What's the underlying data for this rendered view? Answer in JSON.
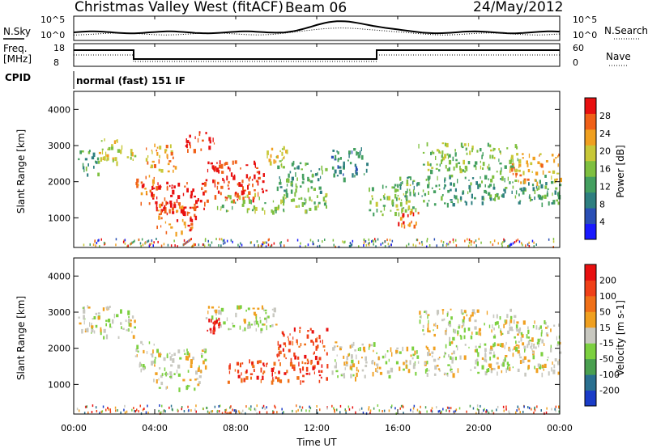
{
  "header": {
    "radar_title": "Christmas Valley West (fitACF)",
    "beam": "Beam 06",
    "date": "24/May/2012"
  },
  "top_panels": {
    "nsky_label": "N.Sky",
    "nsearch_label": "N.Search",
    "freq_label_line1": "Freq.",
    "freq_label_line2": "[MHz]",
    "nave_label": "Nave",
    "cpid_label": "CPID",
    "cpid_text": "normal (fast) 151 IF",
    "noise_ticks_left": [
      "10^5",
      "10^0"
    ],
    "noise_ticks_right": [
      "10^5",
      "10^0"
    ],
    "freq_ticks": [
      "18",
      "8"
    ],
    "nave_ticks": [
      "60",
      "0"
    ]
  },
  "chart_data": [
    {
      "type": "heatmap",
      "name": "power",
      "ylabel": "Slant Range [km]",
      "ylim": [
        180,
        4500
      ],
      "yticks": [
        "1000",
        "2000",
        "3000",
        "4000"
      ],
      "xlim": [
        0,
        24
      ],
      "colorbar_label": "Power [dB]",
      "colorbar_ticks": [
        "4",
        "8",
        "12",
        "16",
        "20",
        "24",
        "28"
      ],
      "colorbar_colors": [
        "#1a1aff",
        "#2a4fb5",
        "#2e7f80",
        "#44a060",
        "#7fc040",
        "#c8c838",
        "#f0a020",
        "#f06018",
        "#e81010"
      ],
      "regions": [
        {
          "t0": 0.2,
          "t1": 1.2,
          "r0": 2200,
          "r1": 2900,
          "level": 3
        },
        {
          "t0": 1.2,
          "t1": 3.0,
          "r0": 2500,
          "r1": 3200,
          "level": 5
        },
        {
          "t0": 3.0,
          "t1": 4.0,
          "r0": 1400,
          "r1": 2200,
          "level": 7
        },
        {
          "t0": 3.8,
          "t1": 6.5,
          "r0": 1100,
          "r1": 2000,
          "level": 8
        },
        {
          "t0": 4.0,
          "t1": 6.0,
          "r0": 600,
          "r1": 1400,
          "level": 7
        },
        {
          "t0": 6.5,
          "t1": 9.5,
          "r0": 1500,
          "r1": 2600,
          "level": 8
        },
        {
          "t0": 9.5,
          "t1": 10.5,
          "r0": 2500,
          "r1": 3000,
          "level": 5
        },
        {
          "t0": 3.5,
          "t1": 5.0,
          "r0": 2300,
          "r1": 3100,
          "level": 6
        },
        {
          "t0": 5.5,
          "t1": 7.0,
          "r0": 2900,
          "r1": 3400,
          "level": 8
        },
        {
          "t0": 7.0,
          "t1": 12.5,
          "r0": 1200,
          "r1": 1700,
          "level": 4
        },
        {
          "t0": 10.0,
          "t1": 12.5,
          "r0": 1700,
          "r1": 2600,
          "level": 3
        },
        {
          "t0": 12.7,
          "t1": 14.5,
          "r0": 2100,
          "r1": 3000,
          "level": 2
        },
        {
          "t0": 14.5,
          "t1": 17.0,
          "r0": 1100,
          "r1": 2000,
          "level": 4
        },
        {
          "t0": 16.0,
          "t1": 17.0,
          "r0": 800,
          "r1": 1200,
          "level": 7
        },
        {
          "t0": 16.0,
          "t1": 24.0,
          "r0": 1400,
          "r1": 2200,
          "level": 3
        },
        {
          "t0": 17.0,
          "t1": 22.0,
          "r0": 2300,
          "r1": 3100,
          "level": 4
        },
        {
          "t0": 21.5,
          "t1": 24.0,
          "r0": 2000,
          "r1": 2800,
          "level": 6
        }
      ]
    },
    {
      "type": "heatmap",
      "name": "velocity",
      "xlabel": "Time UT",
      "ylabel": "Slant Range [km]",
      "ylim": [
        180,
        4500
      ],
      "yticks": [
        "1000",
        "2000",
        "3000",
        "4000"
      ],
      "xlim": [
        0,
        24
      ],
      "xticks": [
        "00:00",
        "04:00",
        "08:00",
        "12:00",
        "16:00",
        "20:00",
        "00:00"
      ],
      "colorbar_label": "Velocity [m s-1]",
      "colorbar_ticks": [
        "200",
        "100",
        "50",
        "15",
        "-15",
        "-50",
        "-100",
        "-200"
      ],
      "colorbar_colors": [
        "#1a3cc8",
        "#2a7090",
        "#4aa050",
        "#7cd040",
        "#c8c8c0",
        "#f0a020",
        "#f07018",
        "#f04018",
        "#e81010"
      ],
      "regions": [
        {
          "t0": 0.2,
          "t1": 3.0,
          "r0": 2300,
          "r1": 3200,
          "level": 4
        },
        {
          "t0": 3.0,
          "t1": 4.0,
          "r0": 1400,
          "r1": 2200,
          "level": 4
        },
        {
          "t0": 3.8,
          "t1": 6.5,
          "r0": 900,
          "r1": 2000,
          "level": 4
        },
        {
          "t0": 6.5,
          "t1": 10.0,
          "r0": 2500,
          "r1": 3200,
          "level": 4
        },
        {
          "t0": 7.5,
          "t1": 12.5,
          "r0": 1100,
          "r1": 1700,
          "level": 7
        },
        {
          "t0": 10.0,
          "t1": 12.5,
          "r0": 1600,
          "r1": 2600,
          "level": 7
        },
        {
          "t0": 6.5,
          "t1": 7.2,
          "r0": 2500,
          "r1": 2900,
          "level": 8
        },
        {
          "t0": 12.7,
          "t1": 16.0,
          "r0": 1200,
          "r1": 2200,
          "level": 4
        },
        {
          "t0": 16.0,
          "t1": 24.0,
          "r0": 1300,
          "r1": 2200,
          "level": 4
        },
        {
          "t0": 17.0,
          "t1": 22.0,
          "r0": 2300,
          "r1": 3100,
          "level": 4
        },
        {
          "t0": 21.5,
          "t1": 24.0,
          "r0": 2000,
          "r1": 2800,
          "level": 4
        }
      ]
    }
  ]
}
